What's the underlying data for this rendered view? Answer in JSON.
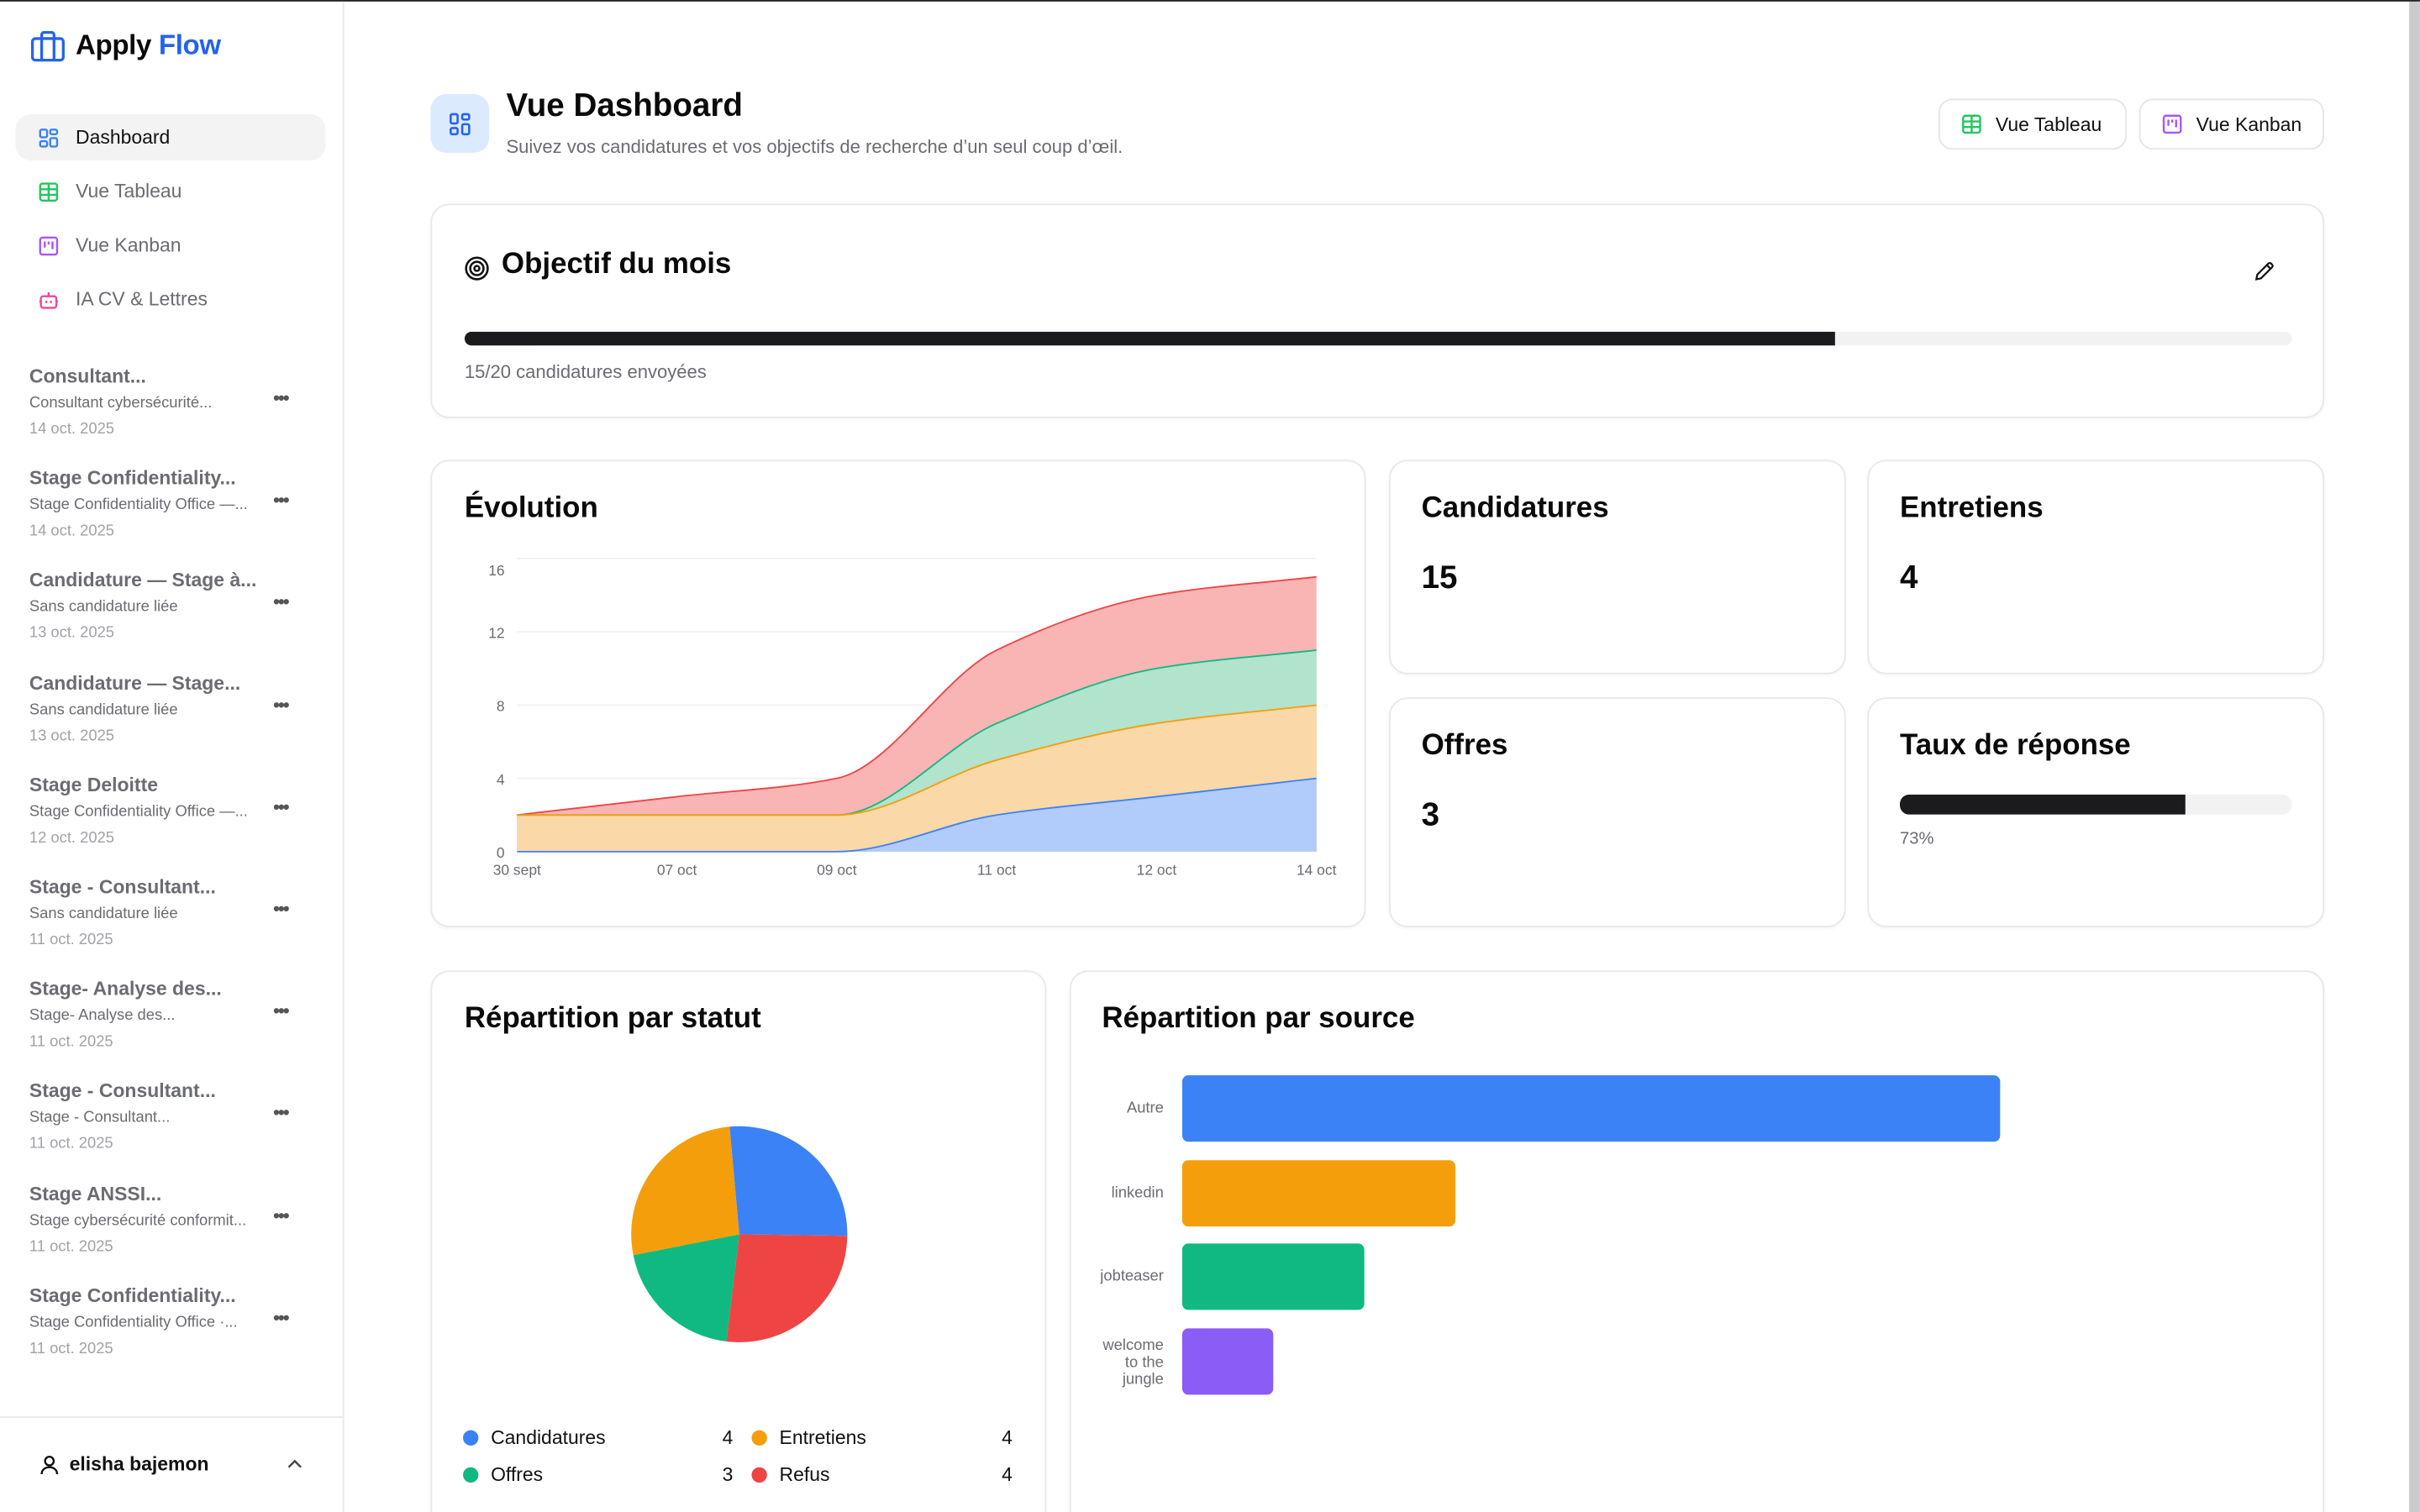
{
  "app": {
    "name_part1": "Apply",
    "name_part2": "Flow",
    "brand_color": "#2563eb"
  },
  "sidebar": {
    "nav": [
      {
        "label": "Dashboard",
        "icon": "dashboard-grid-icon",
        "active": true,
        "color": "#3b82f6"
      },
      {
        "label": "Vue Tableau",
        "icon": "table-icon",
        "active": false,
        "color": "#22c55e"
      },
      {
        "label": "Vue Kanban",
        "icon": "kanban-icon",
        "active": false,
        "color": "#a855f7"
      },
      {
        "label": "IA CV & Lettres",
        "icon": "robot-icon",
        "active": false,
        "color": "#ec4899"
      }
    ],
    "recent": [
      {
        "title": "Consultant...",
        "subtitle": "Consultant cybersécurité...",
        "date": "14 oct. 2025"
      },
      {
        "title": "Stage Confidentiality...",
        "subtitle": "Stage Confidentiality Office —...",
        "date": "14 oct. 2025"
      },
      {
        "title": "Candidature — Stage à...",
        "subtitle": "Sans candidature liée",
        "date": "13 oct. 2025"
      },
      {
        "title": "Candidature — Stage...",
        "subtitle": "Sans candidature liée",
        "date": "13 oct. 2025"
      },
      {
        "title": "Stage Deloitte",
        "subtitle": "Stage Confidentiality Office —...",
        "date": "12 oct. 2025"
      },
      {
        "title": "Stage - Consultant...",
        "subtitle": "Sans candidature liée",
        "date": "11 oct. 2025"
      },
      {
        "title": "Stage- Analyse des...",
        "subtitle": "Stage- Analyse des...",
        "date": "11 oct. 2025"
      },
      {
        "title": "Stage - Consultant...",
        "subtitle": "Stage - Consultant...",
        "date": "11 oct. 2025"
      },
      {
        "title": "Stage ANSSI...",
        "subtitle": "Stage cybersécurité conformit...",
        "date": "11 oct. 2025"
      },
      {
        "title": "Stage Confidentiality...",
        "subtitle": "Stage Confidentiality Office ·...",
        "date": "11 oct. 2025"
      }
    ],
    "more_label": "•••",
    "user": {
      "name": "elisha bajemon"
    }
  },
  "header": {
    "title": "Vue Dashboard",
    "subtitle": "Suivez vos candidatures et vos objectifs de recherche d’un seul coup d’œil.",
    "buttons": [
      {
        "label": "Vue Tableau"
      },
      {
        "label": "Vue Kanban"
      }
    ]
  },
  "goal": {
    "title": "Objectif du mois",
    "sent": 15,
    "target": 20,
    "progress": 0.75,
    "caption": "15/20 candidatures envoyées"
  },
  "stats": {
    "candidatures": {
      "label": "Candidatures",
      "value": "15"
    },
    "entretiens": {
      "label": "Entretiens",
      "value": "4"
    },
    "offres": {
      "label": "Offres",
      "value": "3"
    },
    "taux": {
      "label": "Taux de réponse",
      "value_text": "73%",
      "progress": 0.73
    }
  },
  "chart_data": [
    {
      "type": "area",
      "stacked": true,
      "title": "Évolution",
      "categories": [
        "30 sept",
        "07 oct",
        "09 oct",
        "11 oct",
        "12 oct",
        "14 oct"
      ],
      "y_ticks": [
        "0",
        "4",
        "8",
        "12",
        "16"
      ],
      "ylim": [
        0,
        16
      ],
      "grid": true,
      "series": [
        {
          "name": "Candidatures",
          "color": "#3b82f6",
          "fill": "#b1cbfa",
          "values": [
            0,
            0,
            0,
            2,
            3,
            4
          ]
        },
        {
          "name": "Entretiens",
          "color": "#f59e0b",
          "fill": "#fad8a7",
          "values": [
            2,
            2,
            2,
            3,
            4,
            4
          ]
        },
        {
          "name": "Offres",
          "color": "#10b981",
          "fill": "#b2e3cc",
          "values": [
            0,
            0,
            0,
            2,
            3,
            3
          ]
        },
        {
          "name": "Refus",
          "color": "#ef4444",
          "fill": "#f9b4b4",
          "values": [
            0,
            1,
            2,
            4,
            4,
            4
          ]
        }
      ]
    },
    {
      "type": "pie",
      "title": "Répartition par statut",
      "slices": [
        {
          "label": "Candidatures",
          "value": 4,
          "color": "#3b82f6"
        },
        {
          "label": "Refus",
          "value": 4,
          "color": "#ef4444"
        },
        {
          "label": "Offres",
          "value": 3,
          "color": "#10b981"
        },
        {
          "label": "Entretiens",
          "value": 4,
          "color": "#f59e0b"
        }
      ],
      "legend": [
        {
          "label": "Candidatures",
          "value": "4",
          "color": "#3b82f6"
        },
        {
          "label": "Entretiens",
          "value": "4",
          "color": "#f59e0b"
        },
        {
          "label": "Offres",
          "value": "3",
          "color": "#10b981"
        },
        {
          "label": "Refus",
          "value": "4",
          "color": "#ef4444"
        }
      ]
    },
    {
      "type": "bar",
      "orientation": "horizontal",
      "title": "Répartition par source",
      "categories": [
        "Autre",
        "linkedin",
        "jobteaser",
        "welcome to the jungle"
      ],
      "values": [
        9,
        3,
        2,
        1
      ],
      "colors": [
        "#3b82f6",
        "#f59e0b",
        "#10b981",
        "#8b5cf6"
      ],
      "xlim": [
        0,
        9
      ]
    }
  ]
}
